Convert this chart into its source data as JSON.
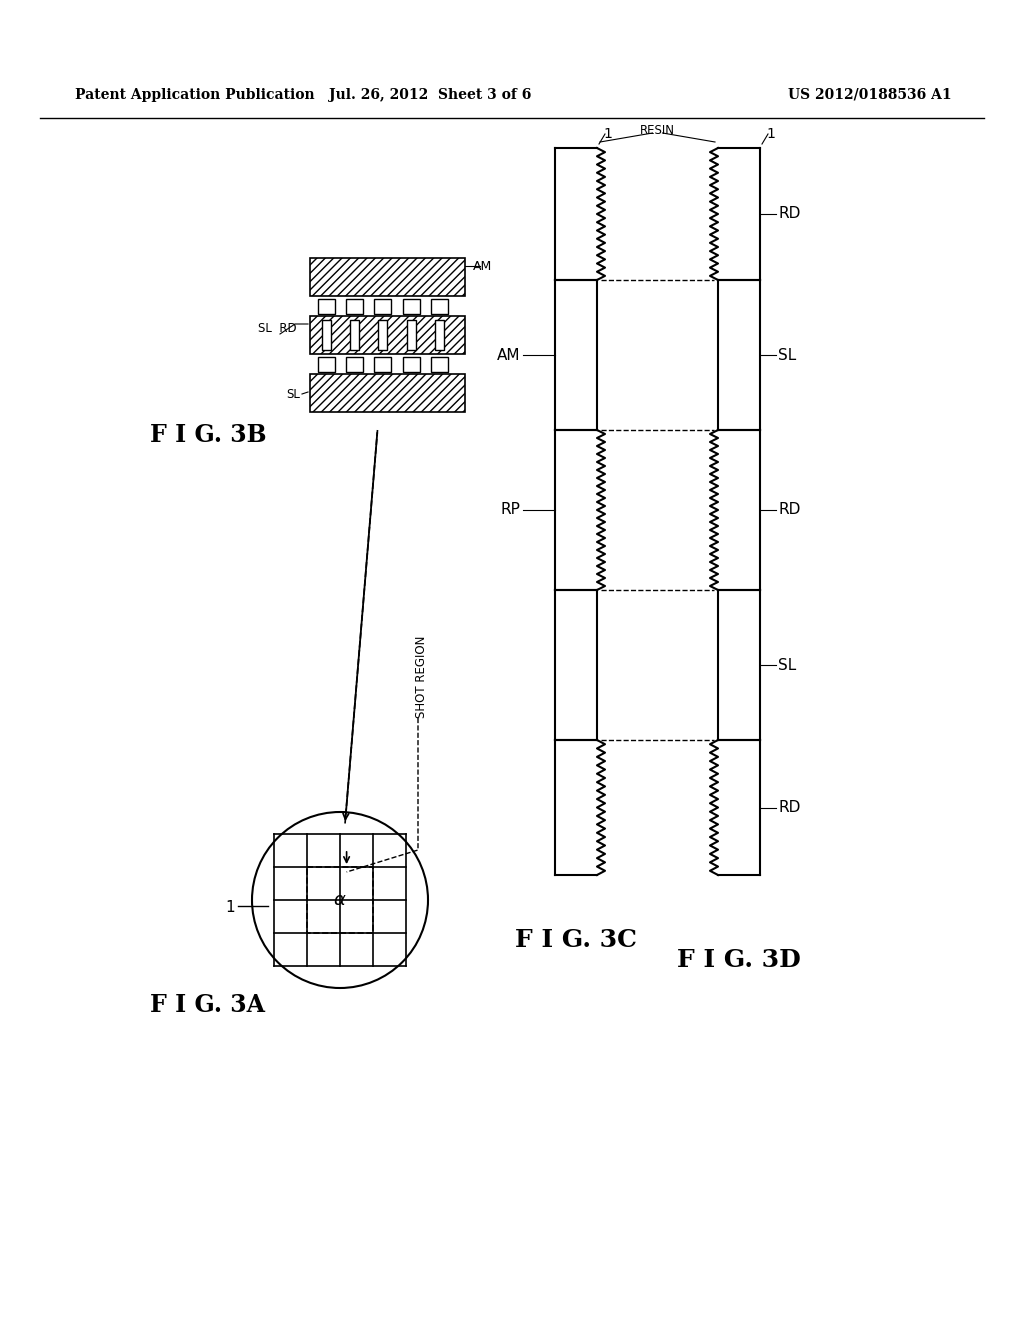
{
  "header_left": "Patent Application Publication",
  "header_mid": "Jul. 26, 2012  Sheet 3 of 6",
  "header_right": "US 2012/0188536 A1",
  "fig3a_label": "F I G. 3A",
  "fig3b_label": "F I G. 3B",
  "fig3c_label": "F I G. 3C",
  "fig3d_label": "F I G. 3D",
  "background_color": "#ffffff",
  "line_color": "#000000"
}
